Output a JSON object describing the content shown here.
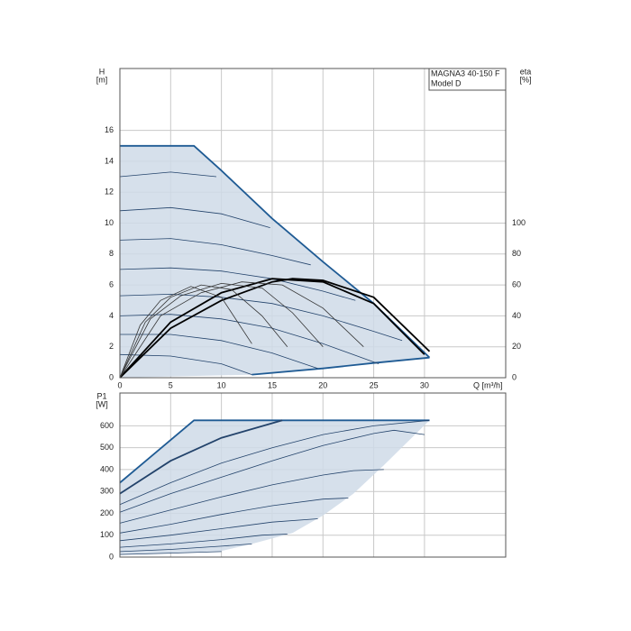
{
  "chart_data": [
    {
      "type": "line",
      "ylabel": [
        "H",
        "[m]"
      ],
      "y2label": [
        "eta",
        "[%]"
      ],
      "xlabel": "Q [m³/h]",
      "title_box": [
        "MAGNA3 40-150 F",
        "Model D"
      ],
      "xlim": [
        0,
        38
      ],
      "ylim": [
        0,
        20
      ],
      "y2lim": [
        0,
        200
      ],
      "xticks": [
        0,
        5,
        10,
        15,
        20,
        25,
        30
      ],
      "yticks": [
        0,
        2,
        4,
        6,
        8,
        10,
        12,
        14,
        16
      ],
      "y2ticks": [
        0,
        20,
        40,
        60,
        80,
        100
      ],
      "grid": true,
      "series": [
        {
          "fill": "#cfdbe7",
          "x": [
            0,
            7.3,
            10,
            15,
            20,
            25,
            30.5,
            25,
            20,
            13,
            10,
            0
          ],
          "values": [
            15,
            15,
            13.4,
            10.3,
            7.5,
            4.8,
            1.3,
            0.95,
            0.6,
            0.2,
            0.15,
            0
          ]
        },
        {
          "color": "#1f5b94",
          "x": [
            0,
            7.3,
            10,
            15,
            20,
            25,
            30.5
          ],
          "values": [
            15,
            15,
            13.4,
            10.3,
            7.5,
            4.8,
            1.3
          ]
        },
        {
          "color": "#1f5b94",
          "x": [
            13,
            20,
            25,
            30.5
          ],
          "values": [
            0.2,
            0.6,
            0.95,
            1.3
          ]
        },
        {
          "color": "#23436b",
          "x": [
            0,
            5,
            9.5
          ],
          "values": [
            13,
            13.3,
            13
          ]
        },
        {
          "color": "#23436b",
          "x": [
            0,
            5,
            10,
            14.8
          ],
          "values": [
            10.8,
            11,
            10.6,
            9.7
          ]
        },
        {
          "color": "#23436b",
          "x": [
            0,
            5,
            10,
            15,
            18.8
          ],
          "values": [
            8.9,
            9,
            8.6,
            7.9,
            7.3
          ]
        },
        {
          "color": "#23436b",
          "x": [
            0,
            5,
            10,
            15,
            20,
            23.2
          ],
          "values": [
            7,
            7.1,
            6.9,
            6.4,
            5.6,
            5
          ]
        },
        {
          "color": "#23436b",
          "x": [
            0,
            5,
            10,
            15,
            20,
            25,
            27.8
          ],
          "values": [
            5.3,
            5.4,
            5.2,
            4.8,
            4,
            3,
            2.4
          ]
        },
        {
          "color": "#23436b",
          "x": [
            0,
            5,
            10,
            15,
            20,
            25.5
          ],
          "values": [
            4,
            4.1,
            3.8,
            3.2,
            2.2,
            0.9
          ]
        },
        {
          "color": "#23436b",
          "x": [
            0,
            5,
            10,
            15,
            19.5
          ],
          "values": [
            2.8,
            2.8,
            2.4,
            1.6,
            0.6
          ]
        },
        {
          "color": "#23436b",
          "x": [
            0,
            5,
            10,
            13
          ],
          "values": [
            1.5,
            1.4,
            0.9,
            0.2
          ]
        },
        {
          "color": "#000000",
          "axis": "y2",
          "x": [
            0,
            5,
            10,
            15,
            17,
            20,
            25,
            30.5
          ],
          "values": [
            0,
            32,
            50,
            62,
            64,
            63,
            52,
            17
          ]
        },
        {
          "color": "#000000",
          "axis": "y2",
          "x": [
            0,
            5,
            10,
            15,
            20,
            25,
            30
          ],
          "values": [
            0,
            36,
            55,
            64,
            62,
            48,
            15
          ]
        },
        {
          "color": "#333333",
          "axis": "y2",
          "x": [
            0,
            4,
            8,
            12,
            16,
            20,
            24
          ],
          "values": [
            0,
            40,
            55,
            62,
            60,
            45,
            20
          ]
        },
        {
          "color": "#333333",
          "axis": "y2",
          "x": [
            0,
            3,
            6,
            10,
            14,
            17,
            20
          ],
          "values": [
            0,
            38,
            53,
            61,
            58,
            42,
            20
          ]
        },
        {
          "color": "#333333",
          "axis": "y2",
          "x": [
            0,
            2.5,
            5,
            8,
            11,
            14,
            16.5
          ],
          "values": [
            0,
            36,
            52,
            60,
            57,
            40,
            20
          ]
        },
        {
          "color": "#333333",
          "axis": "y2",
          "x": [
            0,
            2,
            4,
            7,
            10,
            13
          ],
          "values": [
            0,
            34,
            50,
            59,
            52,
            22
          ]
        }
      ]
    },
    {
      "type": "line",
      "ylabel": [
        "P1",
        "[W]"
      ],
      "xlim": [
        0,
        38
      ],
      "ylim": [
        0,
        750
      ],
      "yticks": [
        0,
        100,
        200,
        300,
        400,
        500,
        600
      ],
      "grid": true,
      "series": [
        {
          "fill": "#cfdbe7",
          "x": [
            0,
            7.3,
            30.5,
            26,
            23,
            20,
            17,
            13,
            10,
            0
          ],
          "values": [
            340,
            625,
            625,
            420,
            290,
            190,
            110,
            60,
            28,
            12
          ]
        },
        {
          "color": "#1f5b94",
          "x": [
            0,
            7.3,
            30.5
          ],
          "values": [
            340,
            625,
            625
          ]
        },
        {
          "color": "#23436b",
          "x": [
            0,
            5,
            10,
            16
          ],
          "values": [
            290,
            440,
            545,
            625
          ]
        },
        {
          "color": "#23436b",
          "x": [
            0,
            5,
            10,
            15,
            20,
            25,
            30.5
          ],
          "values": [
            240,
            340,
            430,
            500,
            560,
            600,
            625
          ]
        },
        {
          "color": "#23436b",
          "x": [
            0,
            5,
            10,
            15,
            20,
            25,
            27,
            30
          ],
          "values": [
            205,
            290,
            365,
            440,
            510,
            565,
            580,
            560
          ]
        },
        {
          "color": "#23436b",
          "x": [
            0,
            5,
            10,
            15,
            20,
            23,
            26
          ],
          "values": [
            155,
            215,
            275,
            330,
            375,
            395,
            400
          ]
        },
        {
          "color": "#23436b",
          "x": [
            0,
            5,
            10,
            15,
            20,
            22.5
          ],
          "values": [
            110,
            150,
            195,
            235,
            265,
            270
          ]
        },
        {
          "color": "#23436b",
          "x": [
            0,
            5,
            10,
            15,
            19.5
          ],
          "values": [
            75,
            100,
            130,
            160,
            175
          ]
        },
        {
          "color": "#23436b",
          "x": [
            0,
            5,
            10,
            14,
            16.5
          ],
          "values": [
            45,
            60,
            80,
            100,
            105
          ]
        },
        {
          "color": "#23436b",
          "x": [
            0,
            5,
            10,
            13
          ],
          "values": [
            25,
            35,
            50,
            60
          ]
        },
        {
          "color": "#23436b",
          "x": [
            0,
            5,
            10
          ],
          "values": [
            12,
            18,
            25
          ]
        }
      ]
    }
  ]
}
